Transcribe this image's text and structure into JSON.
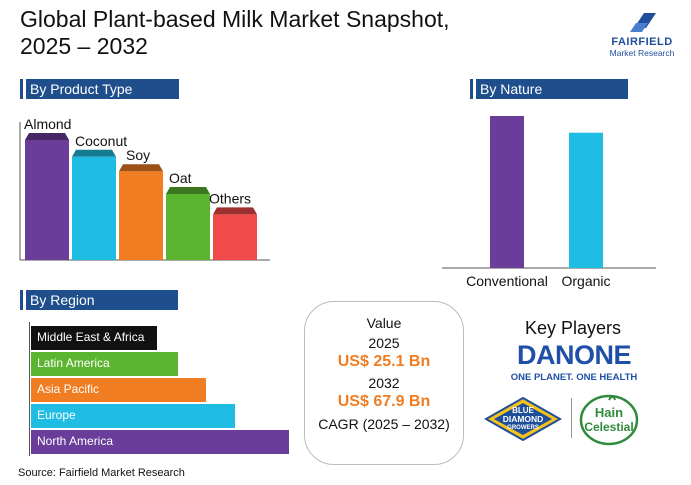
{
  "title_line1": "Global Plant-based Milk Market Snapshot,",
  "title_line2": "2025 – 2032",
  "logo": {
    "name": "FAIRFIELD",
    "tagline": "Market Research",
    "color": "#1f4e9a"
  },
  "sections": {
    "product_type": "By Product Type",
    "nature": "By Nature",
    "region": "By Region"
  },
  "value_box": {
    "heading": "Value",
    "year1": "2025",
    "value1": "US$ 25.1 Bn",
    "year2": "2032",
    "value2": "US$ 67.9 Bn",
    "cagr": "CAGR (2025 – 2032)"
  },
  "key_players": {
    "heading": "Key Players",
    "danone": "DANONE",
    "danone_tagline": "ONE PLANET. ONE HEALTH",
    "blue_diamond": [
      "BLUE",
      "DIAMOND",
      "GROWERS"
    ],
    "hain": [
      "Hain",
      "Celestial"
    ]
  },
  "source": "Source: Fairfield Market Research",
  "chart_data": [
    {
      "type": "bar",
      "title": "By Product Type",
      "categories": [
        "Almond",
        "Coconut",
        "Soy",
        "Oat",
        "Others"
      ],
      "values": [
        100,
        86,
        74,
        55,
        38
      ],
      "colors": [
        "#6a3d9a",
        "#1fbde3",
        "#f07d22",
        "#5cb531",
        "#f04a4a"
      ],
      "ylim": [
        0,
        100
      ],
      "grid": false
    },
    {
      "type": "bar",
      "title": "By Nature",
      "categories": [
        "Conventional",
        "Organic"
      ],
      "values": [
        100,
        89
      ],
      "colors": [
        "#6a3d9a",
        "#1fbde3"
      ],
      "ylim": [
        0,
        100
      ],
      "grid": false
    },
    {
      "type": "bar",
      "orientation": "horizontal",
      "title": "By Region",
      "categories": [
        "Middle East & Africa",
        "Latin America",
        "Asia Pacific",
        "Europe",
        "North America"
      ],
      "values": [
        49,
        57,
        68,
        79,
        100
      ],
      "colors": [
        "#111111",
        "#5cb531",
        "#f07d22",
        "#1fbde3",
        "#6a3d9a"
      ],
      "label_colors": [
        "#ffffff",
        "#ffffff",
        "#ffffff",
        "#ffffff",
        "#ffffff"
      ],
      "ylim": [
        0,
        100
      ],
      "grid": false
    }
  ]
}
